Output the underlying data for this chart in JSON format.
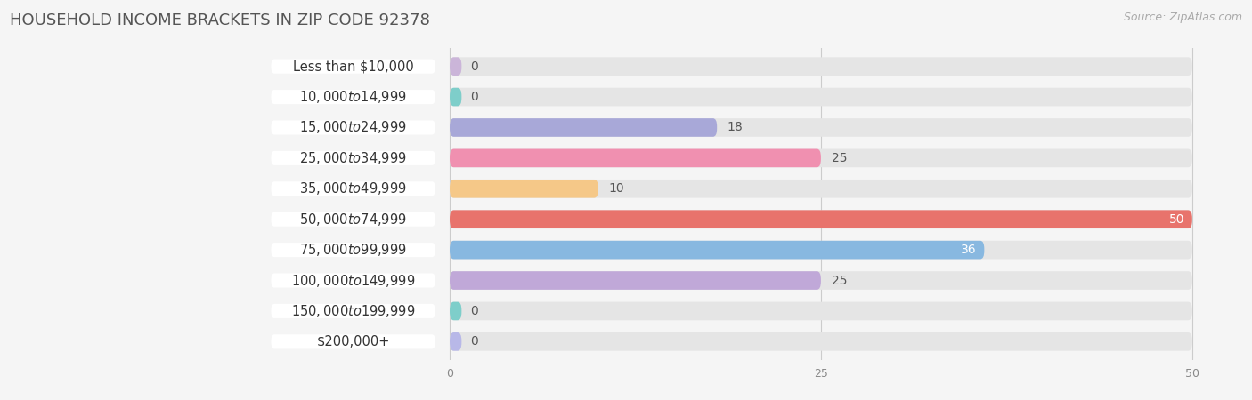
{
  "title": "HOUSEHOLD INCOME BRACKETS IN ZIP CODE 92378",
  "source": "Source: ZipAtlas.com",
  "categories": [
    "Less than $10,000",
    "$10,000 to $14,999",
    "$15,000 to $24,999",
    "$25,000 to $34,999",
    "$35,000 to $49,999",
    "$50,000 to $74,999",
    "$75,000 to $99,999",
    "$100,000 to $149,999",
    "$150,000 to $199,999",
    "$200,000+"
  ],
  "values": [
    0,
    0,
    18,
    25,
    10,
    50,
    36,
    25,
    0,
    0
  ],
  "bar_colors": [
    "#cbb5d9",
    "#7ececa",
    "#a8a8d8",
    "#f090b0",
    "#f5c888",
    "#e8736c",
    "#88b8e0",
    "#c0a8d8",
    "#7ececa",
    "#b8b8e8"
  ],
  "value_label_colors": [
    "#555555",
    "#555555",
    "#555555",
    "#555555",
    "#555555",
    "#ffffff",
    "#ffffff",
    "#555555",
    "#555555",
    "#555555"
  ],
  "xmax": 50,
  "xticks": [
    0,
    25,
    50
  ],
  "background_color": "#f5f5f5",
  "bar_bg_color": "#e5e5e5",
  "title_fontsize": 13,
  "source_fontsize": 9,
  "value_fontsize": 10,
  "category_fontsize": 10.5,
  "bar_height": 0.6,
  "bar_gap": 0.4
}
